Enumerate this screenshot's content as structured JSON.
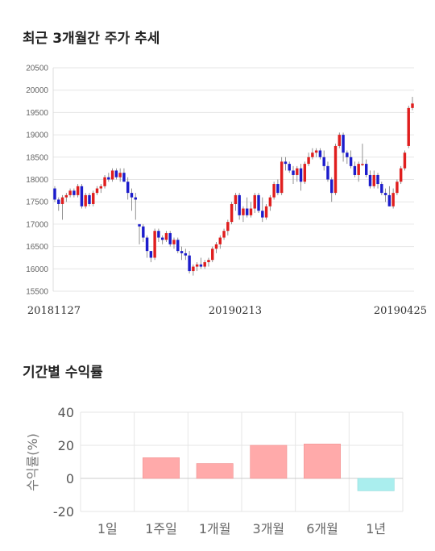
{
  "section1_title": "최근 3개월간 주가 추세",
  "section2_title": "기간별 수익률",
  "colors": {
    "up": "#e01e1e",
    "down": "#1c1ccc",
    "positive": "#ffaaaa",
    "negative": "#aaeeee",
    "grid": "#e6e6e6"
  },
  "chart_data": [
    {
      "type": "candlestick",
      "ylim": [
        15500,
        20500
      ],
      "yticks": [
        "15500",
        "16000",
        "16500",
        "17000",
        "17500",
        "18000",
        "18500",
        "19000",
        "19500",
        "20000",
        "20500"
      ],
      "x_tick_labels": [
        "20181127",
        "20190213",
        "20190425"
      ],
      "ohlc": [
        [
          17800,
          17850,
          17500,
          17550
        ],
        [
          17550,
          17600,
          17300,
          17450
        ],
        [
          17450,
          17650,
          17100,
          17600
        ],
        [
          17600,
          17700,
          17500,
          17650
        ],
        [
          17650,
          17800,
          17600,
          17750
        ],
        [
          17750,
          17800,
          17600,
          17650
        ],
        [
          17650,
          17900,
          17600,
          17850
        ],
        [
          17850,
          17900,
          17350,
          17400
        ],
        [
          17400,
          17700,
          17350,
          17650
        ],
        [
          17650,
          17700,
          17400,
          17450
        ],
        [
          17450,
          17750,
          17400,
          17700
        ],
        [
          17700,
          17850,
          17650,
          17800
        ],
        [
          17800,
          17900,
          17700,
          17850
        ],
        [
          17850,
          18100,
          17800,
          18050
        ],
        [
          18050,
          18150,
          17950,
          18000
        ],
        [
          18000,
          18250,
          17950,
          18200
        ],
        [
          18200,
          18250,
          18000,
          18050
        ],
        [
          18050,
          18250,
          17950,
          18150
        ],
        [
          18150,
          18250,
          17950,
          17950
        ],
        [
          17950,
          18050,
          17550,
          17700
        ],
        [
          17700,
          17800,
          17300,
          17600
        ],
        [
          17600,
          17700,
          17100,
          17550
        ],
        [
          17000,
          17000,
          16550,
          16950
        ],
        [
          16950,
          17000,
          16600,
          16700
        ],
        [
          16700,
          16750,
          16250,
          16400
        ],
        [
          16400,
          16400,
          16150,
          16250
        ],
        [
          16250,
          16900,
          16200,
          16850
        ],
        [
          16850,
          16900,
          16600,
          16700
        ],
        [
          16700,
          16750,
          16550,
          16650
        ],
        [
          16650,
          16850,
          16600,
          16800
        ],
        [
          16800,
          16850,
          16500,
          16550
        ],
        [
          16550,
          16700,
          16450,
          16650
        ],
        [
          16650,
          16700,
          16350,
          16400
        ],
        [
          16400,
          16500,
          16200,
          16350
        ],
        [
          16350,
          16450,
          16200,
          16300
        ],
        [
          16300,
          16400,
          15900,
          15950
        ],
        [
          15950,
          16100,
          15850,
          16050
        ],
        [
          16050,
          16150,
          15950,
          16100
        ],
        [
          16100,
          16250,
          16000,
          16050
        ],
        [
          16050,
          16200,
          16000,
          16150
        ],
        [
          16150,
          16250,
          16050,
          16200
        ],
        [
          16200,
          16500,
          16150,
          16450
        ],
        [
          16450,
          16600,
          16350,
          16550
        ],
        [
          16550,
          16750,
          16450,
          16700
        ],
        [
          16700,
          16900,
          16650,
          16850
        ],
        [
          16850,
          17100,
          16750,
          17050
        ],
        [
          17050,
          17500,
          17000,
          17450
        ],
        [
          17450,
          17700,
          17300,
          17650
        ],
        [
          17650,
          17700,
          17100,
          17200
        ],
        [
          17200,
          17400,
          17050,
          17350
        ],
        [
          17350,
          17600,
          17150,
          17200
        ],
        [
          17200,
          17500,
          17150,
          17350
        ],
        [
          17350,
          17700,
          17250,
          17650
        ],
        [
          17650,
          17700,
          17250,
          17300
        ],
        [
          17300,
          17600,
          17050,
          17150
        ],
        [
          17150,
          17450,
          17100,
          17400
        ],
        [
          17400,
          17650,
          17300,
          17600
        ],
        [
          17600,
          17950,
          17550,
          17900
        ],
        [
          17900,
          18000,
          17650,
          17700
        ],
        [
          17700,
          18500,
          17650,
          18400
        ],
        [
          18400,
          18500,
          18200,
          18350
        ],
        [
          18350,
          18400,
          18150,
          18200
        ],
        [
          18200,
          18300,
          17900,
          18100
        ],
        [
          18100,
          18300,
          17950,
          18250
        ],
        [
          18250,
          18350,
          17750,
          17950
        ],
        [
          17950,
          18400,
          17900,
          18350
        ],
        [
          18350,
          18600,
          18300,
          18500
        ],
        [
          18500,
          18700,
          18450,
          18600
        ],
        [
          18600,
          18700,
          18500,
          18650
        ],
        [
          18650,
          18700,
          18450,
          18500
        ],
        [
          18500,
          18650,
          18200,
          18300
        ],
        [
          18300,
          18400,
          17950,
          18000
        ],
        [
          18000,
          18050,
          17500,
          17700
        ],
        [
          17700,
          18800,
          17650,
          18750
        ],
        [
          18750,
          19050,
          18700,
          19000
        ],
        [
          19000,
          19050,
          18400,
          18600
        ],
        [
          18600,
          18650,
          18350,
          18500
        ],
        [
          18500,
          18650,
          18250,
          18300
        ],
        [
          18300,
          18400,
          18050,
          18100
        ],
        [
          18100,
          18400,
          17950,
          18350
        ],
        [
          18350,
          18800,
          18300,
          18350
        ],
        [
          18350,
          18450,
          18050,
          18100
        ],
        [
          18100,
          18200,
          17800,
          17850
        ],
        [
          17850,
          18200,
          17800,
          18100
        ],
        [
          18100,
          18150,
          17800,
          17900
        ],
        [
          17900,
          17950,
          17650,
          17700
        ],
        [
          17700,
          17800,
          17500,
          17650
        ],
        [
          17650,
          17850,
          17400,
          17400
        ],
        [
          17400,
          17800,
          17350,
          17700
        ],
        [
          17700,
          18000,
          17650,
          17950
        ],
        [
          17950,
          18300,
          17900,
          18250
        ],
        [
          18250,
          18650,
          18200,
          18600
        ],
        [
          18750,
          19650,
          18700,
          19600
        ],
        [
          19600,
          19850,
          19550,
          19700
        ]
      ]
    },
    {
      "type": "bar",
      "categories": [
        "1일",
        "1주일",
        "1개월",
        "3개월",
        "6개월",
        "1년"
      ],
      "values": [
        0,
        12.5,
        9,
        20,
        20.8,
        -7.5
      ],
      "ylim": [
        -20,
        40
      ],
      "yticks": [
        "-20",
        "0",
        "20",
        "40"
      ],
      "ylabel": "수익률(%)"
    }
  ]
}
